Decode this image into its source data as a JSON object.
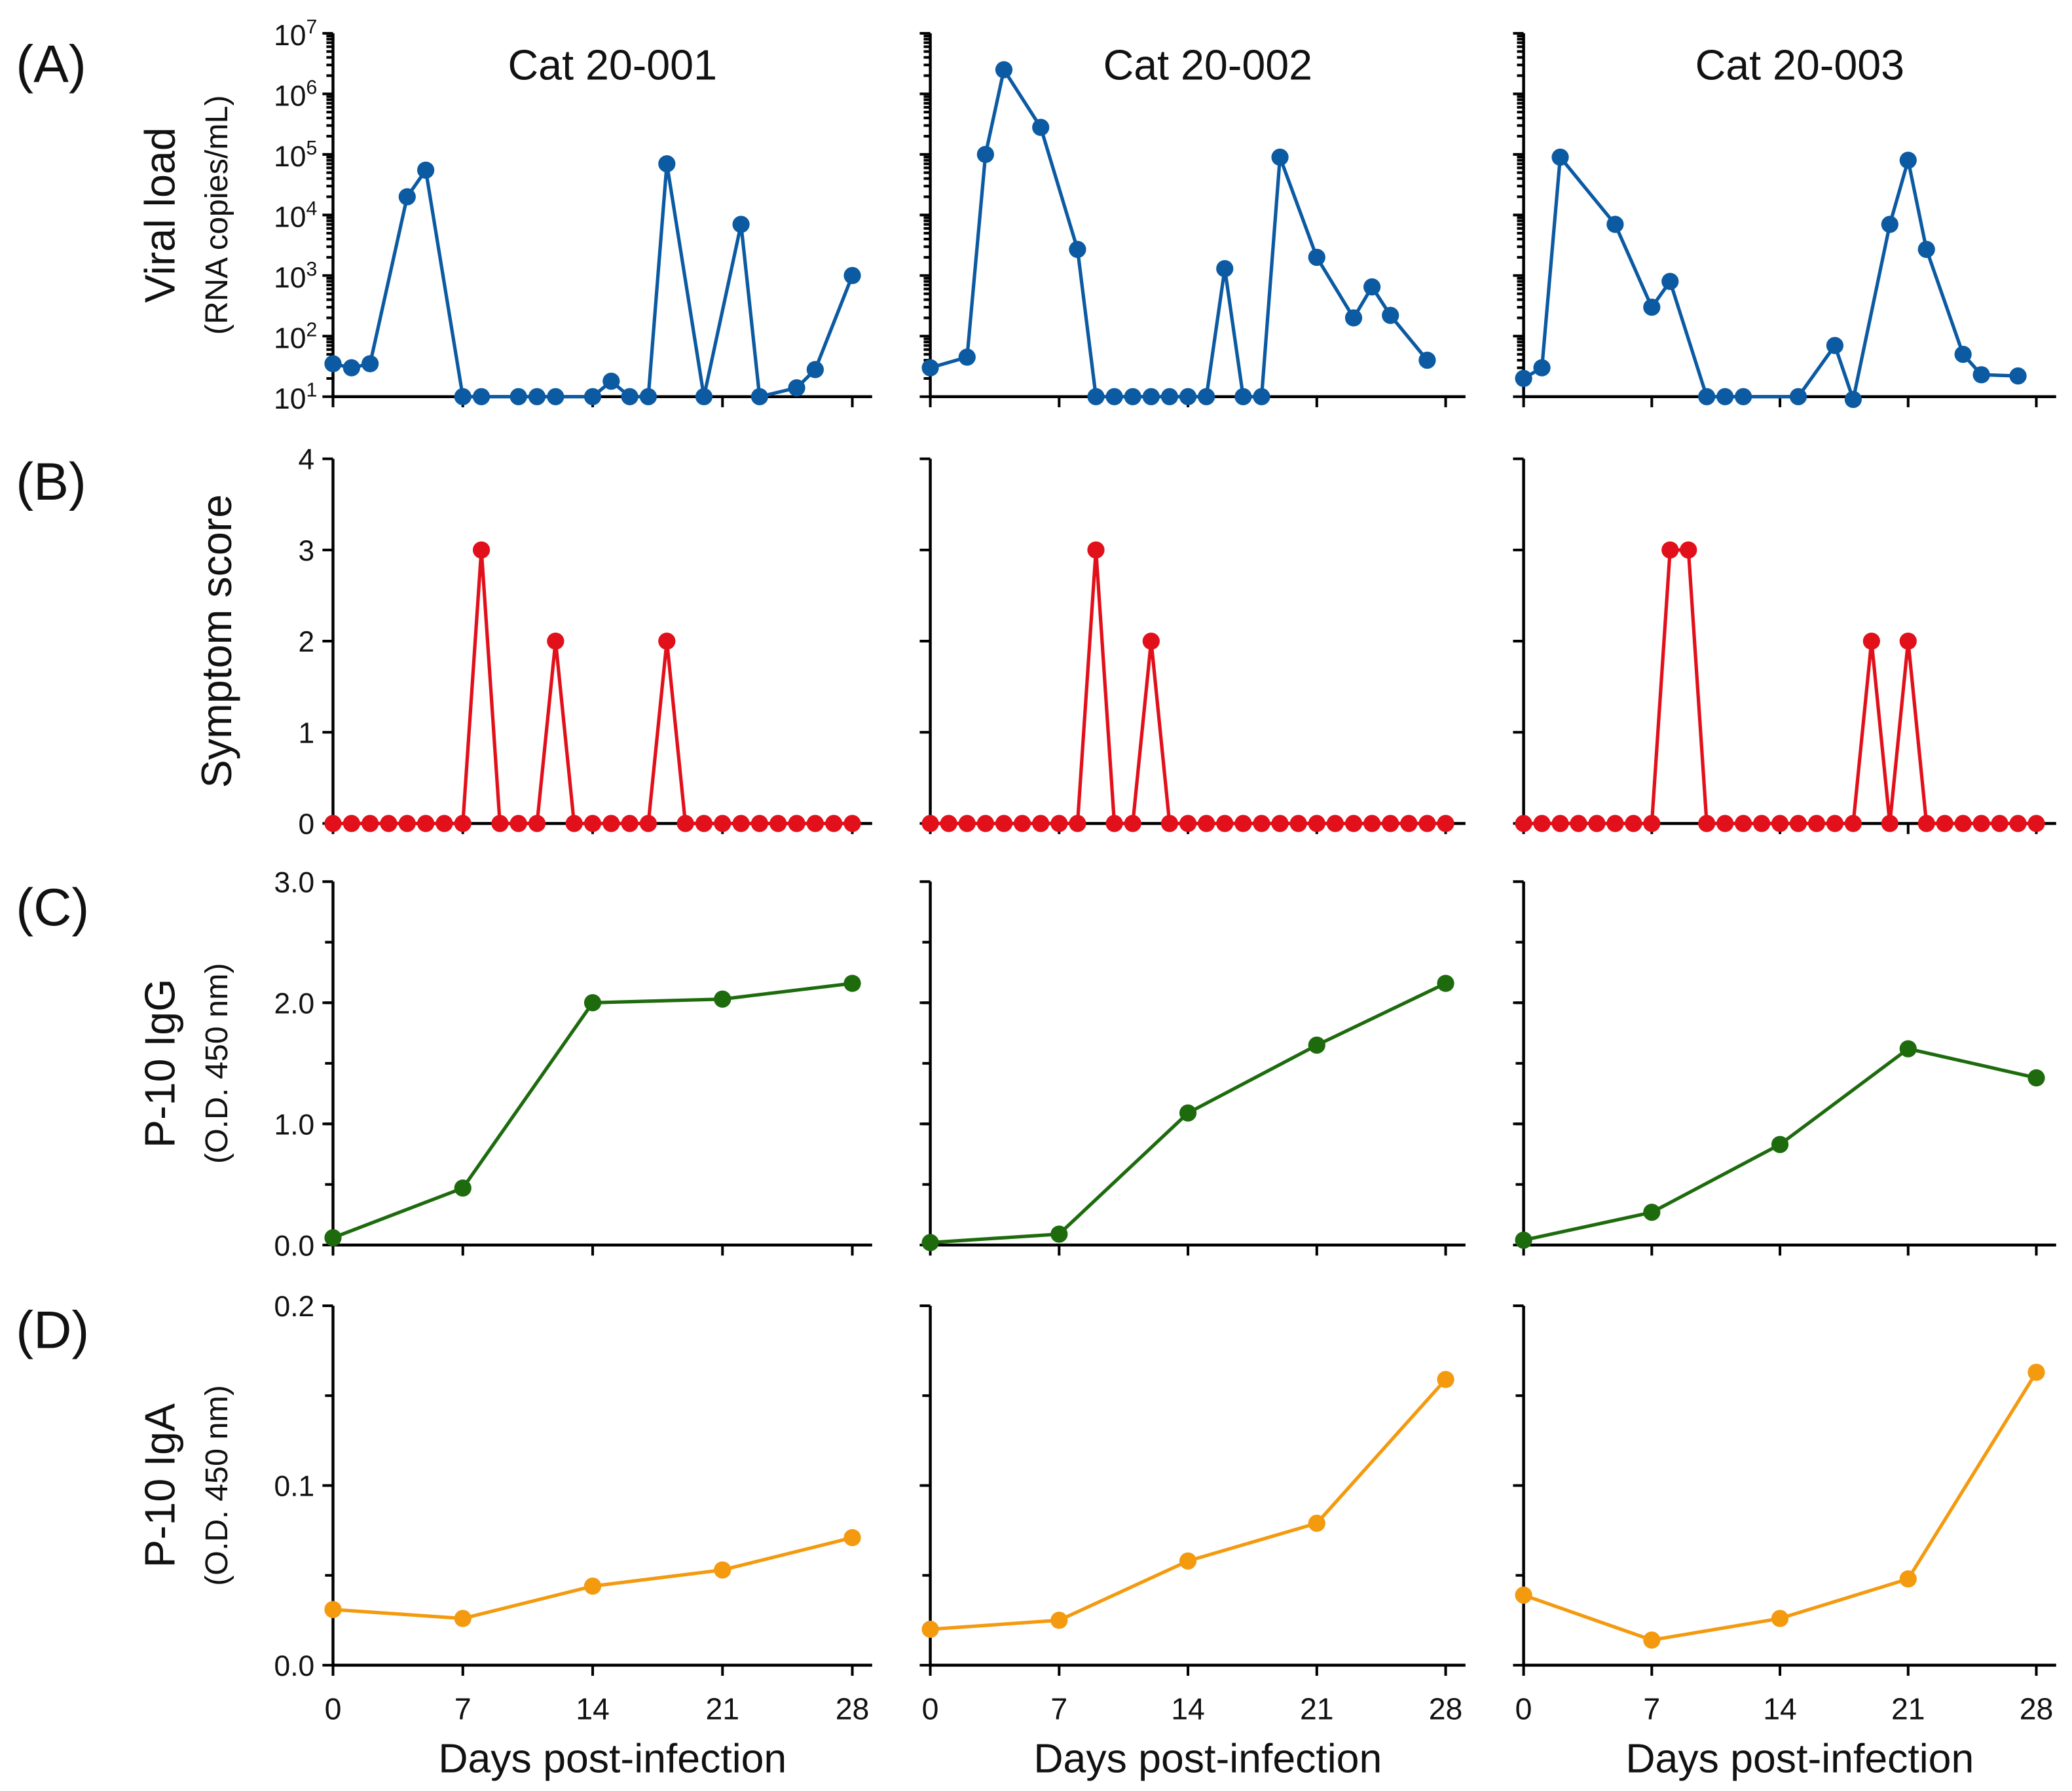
{
  "chart_data": {
    "type": "line",
    "panel_labels": [
      "(A)",
      "(B)",
      "(C)",
      "(D)"
    ],
    "cats": [
      "Cat 20-001",
      "Cat 20-002",
      "Cat 20-003"
    ],
    "xlabel": "Days post-infection",
    "xticks": [
      0,
      7,
      14,
      21,
      28
    ],
    "xlim": [
      0,
      28
    ],
    "rows": [
      {
        "id": "viral-load",
        "ylabel": "Viral load",
        "ylabel_sub": "(RNA copies/mL)",
        "scale": "log",
        "ylim": [
          10,
          10000000
        ],
        "yticks": [
          10,
          100,
          1000,
          10000,
          100000,
          1000000,
          10000000
        ],
        "ytick_labels": [
          [
            "10",
            "1"
          ],
          [
            "10",
            "2"
          ],
          [
            "10",
            "3"
          ],
          [
            "10",
            "4"
          ],
          [
            "10",
            "5"
          ],
          [
            "10",
            "6"
          ],
          [
            "10",
            "7"
          ]
        ],
        "color": "#0b5aa2",
        "series": [
          {
            "x": [
              0,
              1,
              2,
              4,
              5,
              7,
              8,
              10,
              11,
              12,
              14,
              15,
              16,
              17,
              18,
              20,
              22,
              23,
              25,
              26,
              28
            ],
            "y": [
              35,
              30,
              35,
              20000,
              55000,
              10,
              10,
              10,
              10,
              10,
              10,
              18,
              10,
              10,
              70000,
              10,
              7000,
              10,
              14,
              28,
              1000
            ]
          },
          {
            "x": [
              0,
              2,
              3,
              4,
              6,
              8,
              9,
              10,
              11,
              12,
              13,
              14,
              15,
              16,
              17,
              18,
              19,
              21,
              23,
              24,
              25,
              27
            ],
            "y": [
              30,
              45,
              100000,
              2500000,
              280000,
              2700,
              10,
              10,
              10,
              10,
              10,
              10,
              10,
              1300,
              10,
              10,
              90000,
              2000,
              200,
              650,
              220,
              40
            ]
          },
          {
            "x": [
              0,
              1,
              2,
              5,
              7,
              8,
              10,
              11,
              12,
              15,
              17,
              18,
              20,
              21,
              22,
              24,
              25,
              27
            ],
            "y": [
              20,
              30,
              90000,
              7000,
              300,
              800,
              10,
              10,
              10,
              10,
              70,
              9,
              7000,
              80000,
              2700,
              50,
              23,
              22
            ]
          }
        ]
      },
      {
        "id": "symptom-score",
        "ylabel": "Symptom score",
        "ylabel_sub": "",
        "scale": "linear",
        "ylim": [
          0,
          4
        ],
        "yticks": [
          0,
          1,
          2,
          3,
          4
        ],
        "ytick_labels": [
          "0",
          "1",
          "2",
          "3",
          "4"
        ],
        "color": "#e2101a",
        "series": [
          {
            "x": [
              0,
              1,
              2,
              3,
              4,
              5,
              6,
              7,
              8,
              9,
              10,
              11,
              12,
              13,
              14,
              15,
              16,
              17,
              18,
              19,
              20,
              21,
              22,
              23,
              24,
              25,
              26,
              27,
              28
            ],
            "y": [
              0,
              0,
              0,
              0,
              0,
              0,
              0,
              0,
              3,
              0,
              0,
              0,
              2,
              0,
              0,
              0,
              0,
              0,
              2,
              0,
              0,
              0,
              0,
              0,
              0,
              0,
              0,
              0,
              0
            ]
          },
          {
            "x": [
              0,
              1,
              2,
              3,
              4,
              5,
              6,
              7,
              8,
              9,
              10,
              11,
              12,
              13,
              14,
              15,
              16,
              17,
              18,
              19,
              20,
              21,
              22,
              23,
              24,
              25,
              26,
              27,
              28
            ],
            "y": [
              0,
              0,
              0,
              0,
              0,
              0,
              0,
              0,
              0,
              3,
              0,
              0,
              2,
              0,
              0,
              0,
              0,
              0,
              0,
              0,
              0,
              0,
              0,
              0,
              0,
              0,
              0,
              0,
              0
            ]
          },
          {
            "x": [
              0,
              1,
              2,
              3,
              4,
              5,
              6,
              7,
              8,
              9,
              10,
              11,
              12,
              13,
              14,
              15,
              16,
              17,
              18,
              19,
              20,
              21,
              22,
              23,
              24,
              25,
              26,
              27,
              28
            ],
            "y": [
              0,
              0,
              0,
              0,
              0,
              0,
              0,
              0,
              3,
              3,
              0,
              0,
              0,
              0,
              0,
              0,
              0,
              0,
              0,
              2,
              0,
              2,
              0,
              0,
              0,
              0,
              0,
              0,
              0
            ]
          }
        ]
      },
      {
        "id": "igg",
        "ylabel": "P-10 IgG",
        "ylabel_sub": "(O.D. 450 nm)",
        "scale": "linear",
        "ylim": [
          0,
          3
        ],
        "yticks": [
          0,
          1,
          2,
          3
        ],
        "ytick_labels": [
          "0.0",
          "1.0",
          "2.0",
          "3.0"
        ],
        "minor_step": 0.5,
        "color": "#1e6b0e",
        "series": [
          {
            "x": [
              0,
              7,
              14,
              21,
              28
            ],
            "y": [
              0.06,
              0.47,
              2.0,
              2.03,
              2.16
            ]
          },
          {
            "x": [
              0,
              7,
              14,
              21,
              28
            ],
            "y": [
              0.02,
              0.09,
              1.09,
              1.65,
              2.16
            ]
          },
          {
            "x": [
              0,
              7,
              14,
              21,
              28
            ],
            "y": [
              0.04,
              0.27,
              0.83,
              1.62,
              1.38
            ]
          }
        ]
      },
      {
        "id": "iga",
        "ylabel": "P-10 IgA",
        "ylabel_sub": "(O.D. 450 nm)",
        "scale": "linear",
        "ylim": [
          0,
          0.2
        ],
        "yticks": [
          0,
          0.1,
          0.2
        ],
        "ytick_labels": [
          "0.0",
          "0.1",
          "0.2"
        ],
        "minor_step": 0.05,
        "color": "#f39a0f",
        "series": [
          {
            "x": [
              0,
              7,
              14,
              21,
              28
            ],
            "y": [
              0.031,
              0.026,
              0.044,
              0.053,
              0.071
            ]
          },
          {
            "x": [
              0,
              7,
              14,
              21,
              28
            ],
            "y": [
              0.02,
              0.025,
              0.058,
              0.079,
              0.159
            ]
          },
          {
            "x": [
              0,
              7,
              14,
              21,
              28
            ],
            "y": [
              0.039,
              0.014,
              0.026,
              0.048,
              0.163
            ]
          }
        ]
      }
    ]
  }
}
